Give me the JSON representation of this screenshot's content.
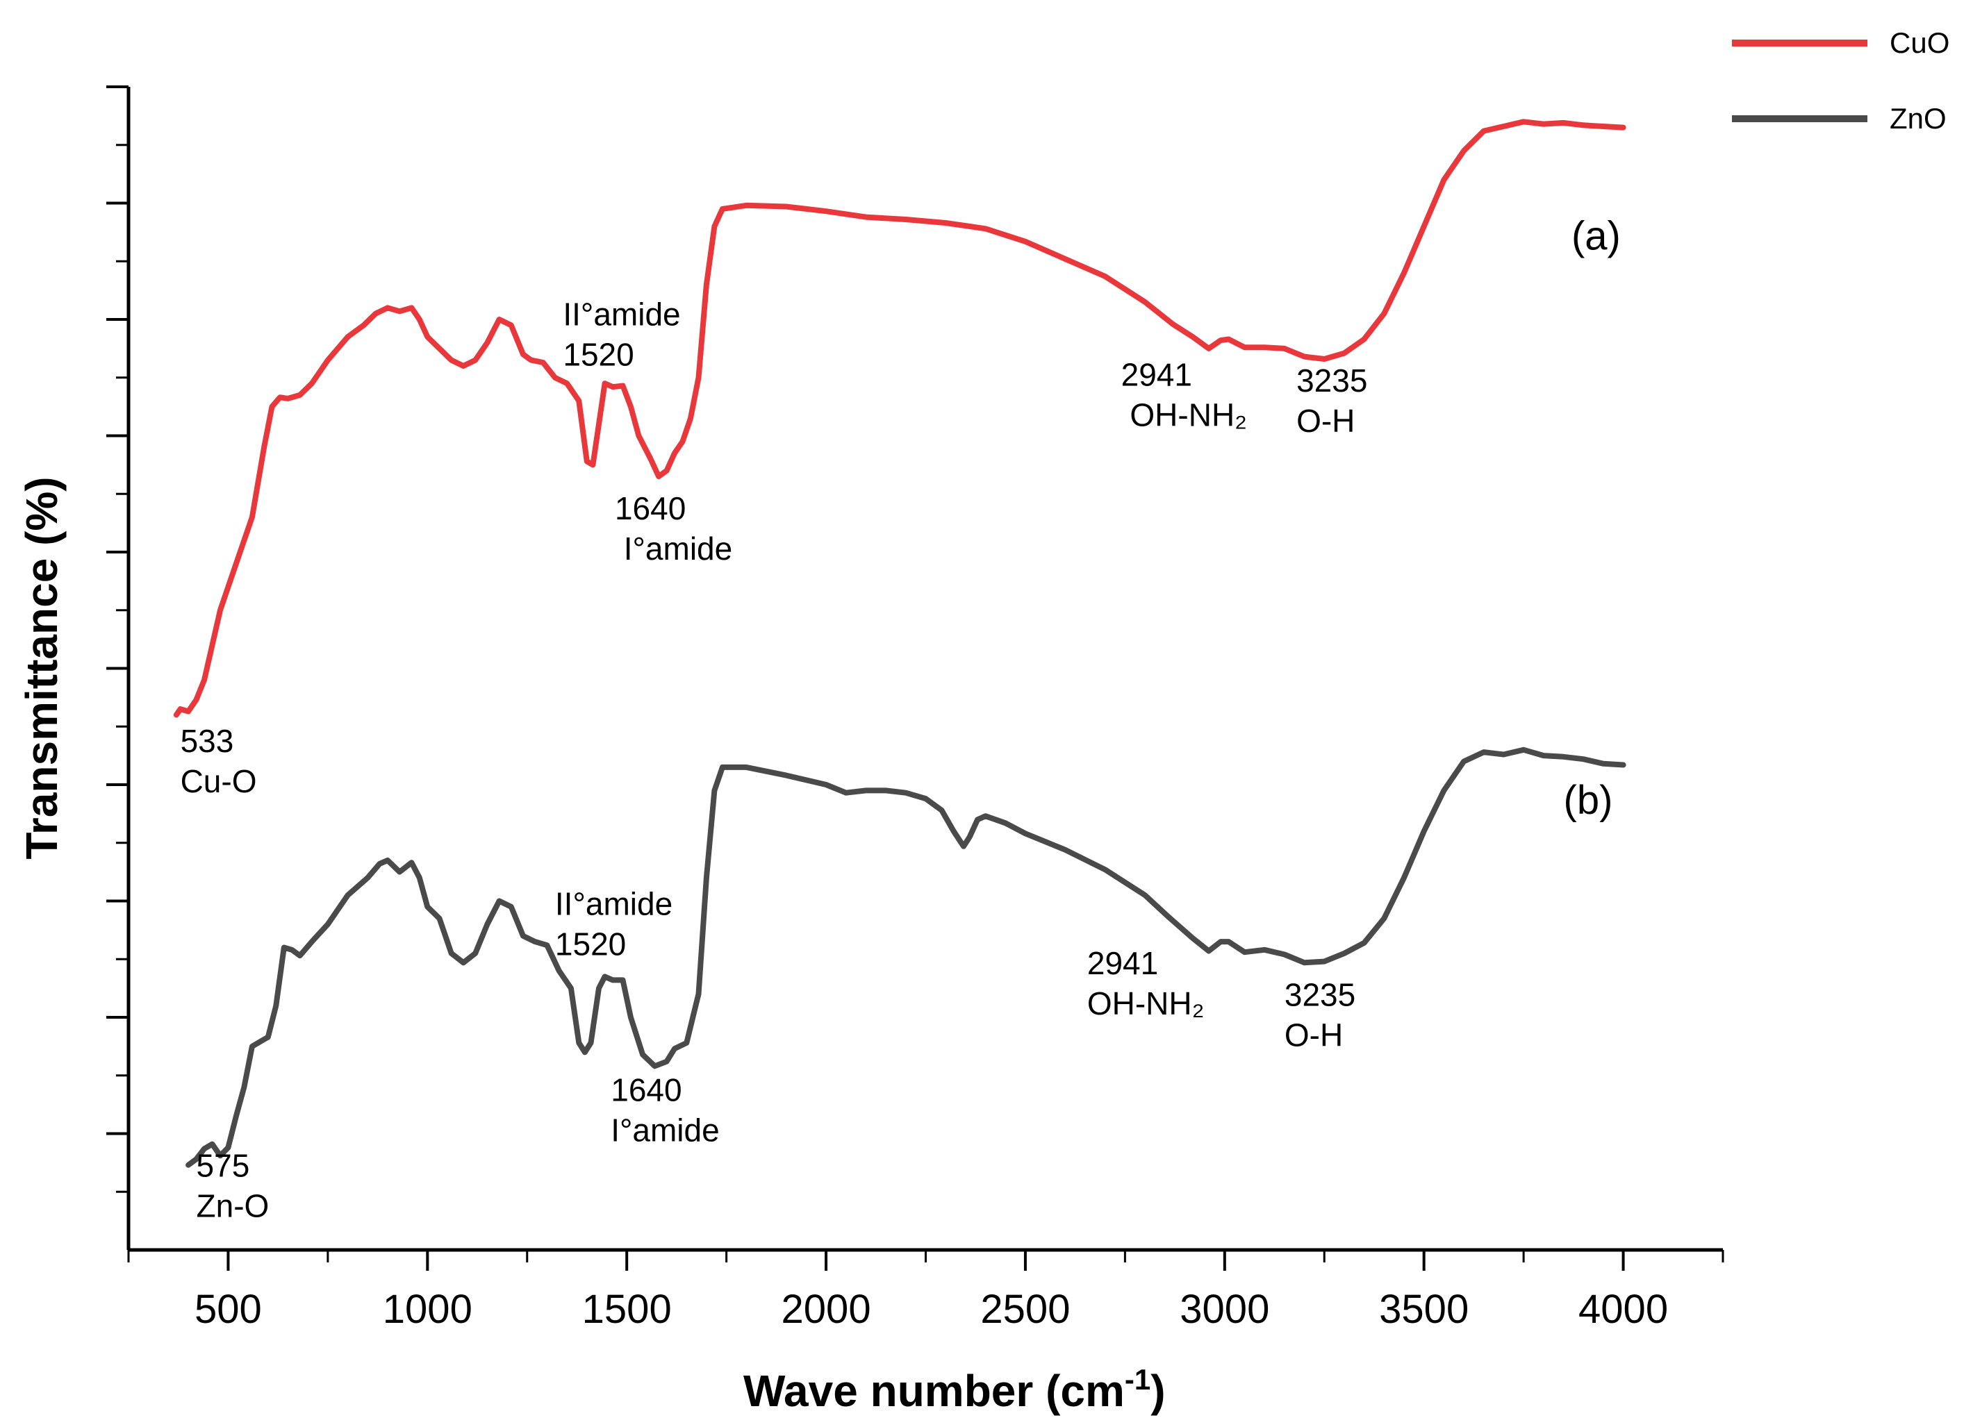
{
  "chart_data": {
    "type": "line",
    "title": "",
    "xlabel": "Wave number (cm",
    "xlabel_sup": "-1",
    "xlabel_end": ")",
    "ylabel": "Transmittance (%)",
    "xlim": [
      250,
      4250
    ],
    "ylim": [
      0,
      100
    ],
    "xticks": [
      500,
      1000,
      1500,
      2000,
      2500,
      3000,
      3500,
      4000
    ],
    "xtick_labels": [
      "500",
      "1000",
      "1500",
      "2000",
      "2500",
      "3000",
      "3500",
      "4000"
    ],
    "y_major_ticks": [
      10,
      20,
      30,
      40,
      50,
      60,
      70,
      80,
      90,
      100
    ],
    "legend": [
      "CuO",
      "ZnO"
    ],
    "legend_position": "top-right",
    "series": [
      {
        "name": "CuO",
        "color": "#e8383b",
        "points": [
          [
            370,
            46
          ],
          [
            380,
            46.5
          ],
          [
            400,
            46.3
          ],
          [
            420,
            47.3
          ],
          [
            440,
            49
          ],
          [
            460,
            52
          ],
          [
            480,
            55
          ],
          [
            500,
            57
          ],
          [
            530,
            60
          ],
          [
            560,
            63
          ],
          [
            590,
            69
          ],
          [
            610,
            72.5
          ],
          [
            630,
            73.3
          ],
          [
            650,
            73.2
          ],
          [
            680,
            73.5
          ],
          [
            710,
            74.5
          ],
          [
            750,
            76.5
          ],
          [
            800,
            78.5
          ],
          [
            840,
            79.5
          ],
          [
            870,
            80.5
          ],
          [
            900,
            81
          ],
          [
            930,
            80.7
          ],
          [
            960,
            81
          ],
          [
            980,
            80
          ],
          [
            1000,
            78.5
          ],
          [
            1030,
            77.5
          ],
          [
            1060,
            76.5
          ],
          [
            1090,
            76
          ],
          [
            1120,
            76.5
          ],
          [
            1150,
            78
          ],
          [
            1180,
            80
          ],
          [
            1210,
            79.5
          ],
          [
            1240,
            77
          ],
          [
            1260,
            76.5
          ],
          [
            1290,
            76.3
          ],
          [
            1320,
            75
          ],
          [
            1350,
            74.5
          ],
          [
            1380,
            73
          ],
          [
            1400,
            67.8
          ],
          [
            1415,
            67.5
          ],
          [
            1430,
            71
          ],
          [
            1445,
            74.5
          ],
          [
            1465,
            74.2
          ],
          [
            1490,
            74.3
          ],
          [
            1510,
            72.5
          ],
          [
            1530,
            70
          ],
          [
            1560,
            68
          ],
          [
            1580,
            66.5
          ],
          [
            1600,
            67
          ],
          [
            1620,
            68.5
          ],
          [
            1640,
            69.5
          ],
          [
            1660,
            71.5
          ],
          [
            1680,
            75
          ],
          [
            1700,
            83
          ],
          [
            1720,
            88
          ],
          [
            1740,
            89.5
          ],
          [
            1800,
            89.8
          ],
          [
            1900,
            89.7
          ],
          [
            2000,
            89.3
          ],
          [
            2100,
            88.8
          ],
          [
            2200,
            88.6
          ],
          [
            2300,
            88.3
          ],
          [
            2400,
            87.8
          ],
          [
            2500,
            86.7
          ],
          [
            2600,
            85.2
          ],
          [
            2700,
            83.7
          ],
          [
            2800,
            81.5
          ],
          [
            2870,
            79.6
          ],
          [
            2920,
            78.5
          ],
          [
            2960,
            77.5
          ],
          [
            2990,
            78.2
          ],
          [
            3010,
            78.3
          ],
          [
            3050,
            77.6
          ],
          [
            3100,
            77.6
          ],
          [
            3150,
            77.5
          ],
          [
            3200,
            76.8
          ],
          [
            3250,
            76.6
          ],
          [
            3300,
            77.1
          ],
          [
            3350,
            78.3
          ],
          [
            3400,
            80.5
          ],
          [
            3450,
            84
          ],
          [
            3500,
            88
          ],
          [
            3550,
            92
          ],
          [
            3600,
            94.5
          ],
          [
            3650,
            96.2
          ],
          [
            3700,
            96.6
          ],
          [
            3750,
            97
          ],
          [
            3800,
            96.8
          ],
          [
            3850,
            96.9
          ],
          [
            3900,
            96.7
          ],
          [
            3950,
            96.6
          ],
          [
            4000,
            96.5
          ]
        ]
      },
      {
        "name": "ZnO",
        "color": "#4a4a4a",
        "points": [
          [
            400,
            7.3
          ],
          [
            420,
            7.8
          ],
          [
            440,
            8.7
          ],
          [
            460,
            9.1
          ],
          [
            480,
            8.1
          ],
          [
            500,
            8.8
          ],
          [
            520,
            11.5
          ],
          [
            540,
            14
          ],
          [
            560,
            17.5
          ],
          [
            580,
            17.9
          ],
          [
            600,
            18.3
          ],
          [
            620,
            21
          ],
          [
            640,
            26
          ],
          [
            660,
            25.8
          ],
          [
            680,
            25.3
          ],
          [
            710,
            26.5
          ],
          [
            750,
            28
          ],
          [
            800,
            30.5
          ],
          [
            850,
            32
          ],
          [
            880,
            33.2
          ],
          [
            900,
            33.5
          ],
          [
            930,
            32.5
          ],
          [
            960,
            33.3
          ],
          [
            980,
            32
          ],
          [
            1000,
            29.5
          ],
          [
            1030,
            28.5
          ],
          [
            1060,
            25.5
          ],
          [
            1090,
            24.7
          ],
          [
            1120,
            25.5
          ],
          [
            1150,
            28
          ],
          [
            1180,
            30
          ],
          [
            1210,
            29.5
          ],
          [
            1240,
            27
          ],
          [
            1270,
            26.5
          ],
          [
            1300,
            26.2
          ],
          [
            1330,
            24
          ],
          [
            1360,
            22.5
          ],
          [
            1380,
            17.8
          ],
          [
            1395,
            17
          ],
          [
            1410,
            17.8
          ],
          [
            1430,
            22.5
          ],
          [
            1445,
            23.5
          ],
          [
            1465,
            23.2
          ],
          [
            1490,
            23.2
          ],
          [
            1510,
            20
          ],
          [
            1540,
            16.8
          ],
          [
            1570,
            15.8
          ],
          [
            1600,
            16.2
          ],
          [
            1620,
            17.3
          ],
          [
            1650,
            17.8
          ],
          [
            1680,
            22
          ],
          [
            1700,
            32
          ],
          [
            1720,
            39.5
          ],
          [
            1740,
            41.5
          ],
          [
            1800,
            41.5
          ],
          [
            1900,
            40.8
          ],
          [
            2000,
            40
          ],
          [
            2050,
            39.3
          ],
          [
            2100,
            39.5
          ],
          [
            2150,
            39.5
          ],
          [
            2200,
            39.3
          ],
          [
            2250,
            38.8
          ],
          [
            2290,
            37.8
          ],
          [
            2320,
            36
          ],
          [
            2345,
            34.7
          ],
          [
            2360,
            35.5
          ],
          [
            2380,
            37
          ],
          [
            2400,
            37.3
          ],
          [
            2450,
            36.7
          ],
          [
            2500,
            35.8
          ],
          [
            2600,
            34.4
          ],
          [
            2700,
            32.7
          ],
          [
            2800,
            30.5
          ],
          [
            2860,
            28.6
          ],
          [
            2920,
            26.8
          ],
          [
            2960,
            25.7
          ],
          [
            2990,
            26.5
          ],
          [
            3010,
            26.5
          ],
          [
            3050,
            25.6
          ],
          [
            3100,
            25.8
          ],
          [
            3150,
            25.4
          ],
          [
            3200,
            24.7
          ],
          [
            3250,
            24.8
          ],
          [
            3300,
            25.5
          ],
          [
            3350,
            26.4
          ],
          [
            3400,
            28.5
          ],
          [
            3450,
            32
          ],
          [
            3500,
            36
          ],
          [
            3550,
            39.5
          ],
          [
            3600,
            42
          ],
          [
            3650,
            42.8
          ],
          [
            3700,
            42.6
          ],
          [
            3750,
            43
          ],
          [
            3800,
            42.5
          ],
          [
            3850,
            42.4
          ],
          [
            3900,
            42.2
          ],
          [
            3950,
            41.8
          ],
          [
            4000,
            41.7
          ]
        ]
      }
    ],
    "annotations": [
      {
        "lines": [
          "533",
          "Cu-O"
        ],
        "x": 380,
        "y": 42.8
      },
      {
        "lines": [
          "II°amide",
          "1520"
        ],
        "x": 1340,
        "y": 79.5
      },
      {
        "lines": [
          "1640",
          " I°amide"
        ],
        "x": 1470,
        "y": 62.8
      },
      {
        "lines": [
          "2941",
          " OH-NH₂"
        ],
        "x": 2740,
        "y": 74.3
      },
      {
        "lines": [
          "3235",
          "O-H"
        ],
        "x": 3180,
        "y": 73.8
      },
      {
        "lines": [
          "II°amide",
          "1520"
        ],
        "x": 1320,
        "y": 28.8
      },
      {
        "lines": [
          "1640",
          "I°amide"
        ],
        "x": 1460,
        "y": 12.8
      },
      {
        "lines": [
          "2941",
          "OH-NH₂"
        ],
        "x": 2655,
        "y": 23.7
      },
      {
        "lines": [
          "3235",
          "O-H"
        ],
        "x": 3150,
        "y": 21
      },
      {
        "lines": [
          "575",
          "Zn-O"
        ],
        "x": 420,
        "y": 6.3
      },
      {
        "label": "(a)",
        "x": 3870,
        "y": 86
      },
      {
        "label": "(b)",
        "x": 3850,
        "y": 37.5
      }
    ]
  }
}
